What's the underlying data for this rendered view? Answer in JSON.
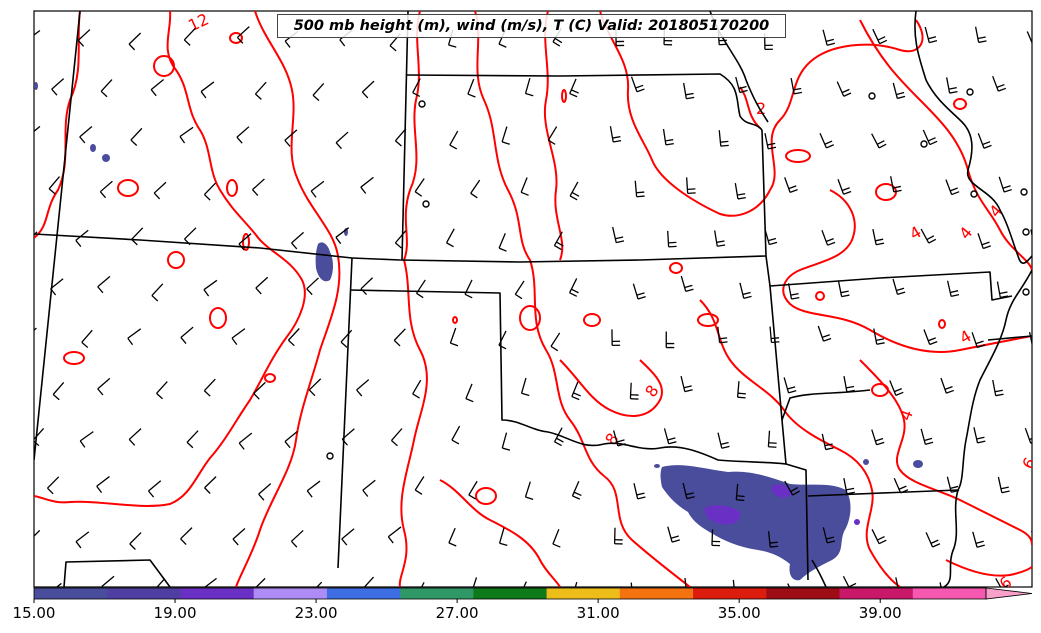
{
  "title": "500 mb height (m), wind (m/s), T (C) Valid: 201805170200",
  "contour_labels": [
    "12",
    "2",
    "4",
    "4",
    "4",
    "4",
    "8",
    "8",
    "4",
    "6",
    "6"
  ],
  "colorbar": {
    "ticks": [
      "15.00",
      "19.00",
      "23.00",
      "27.00",
      "31.00",
      "35.00",
      "39.00"
    ],
    "min": 15,
    "max": 42,
    "step": 2,
    "colors": [
      "#4a4d9b",
      "#4f3fa3",
      "#6a30c6",
      "#ad8cf5",
      "#3e6ee3",
      "#309767",
      "#0f7a1a",
      "#edbe1a",
      "#f57210",
      "#dc1c0c",
      "#9e0d15",
      "#c9176a",
      "#f558ae",
      "#f7a0ca"
    ]
  },
  "colors": {
    "temperature_contour": "#ff0000",
    "boundaries": "#000000",
    "shading_main": "#4a4d9b",
    "shading_core": "#6a30c6"
  }
}
